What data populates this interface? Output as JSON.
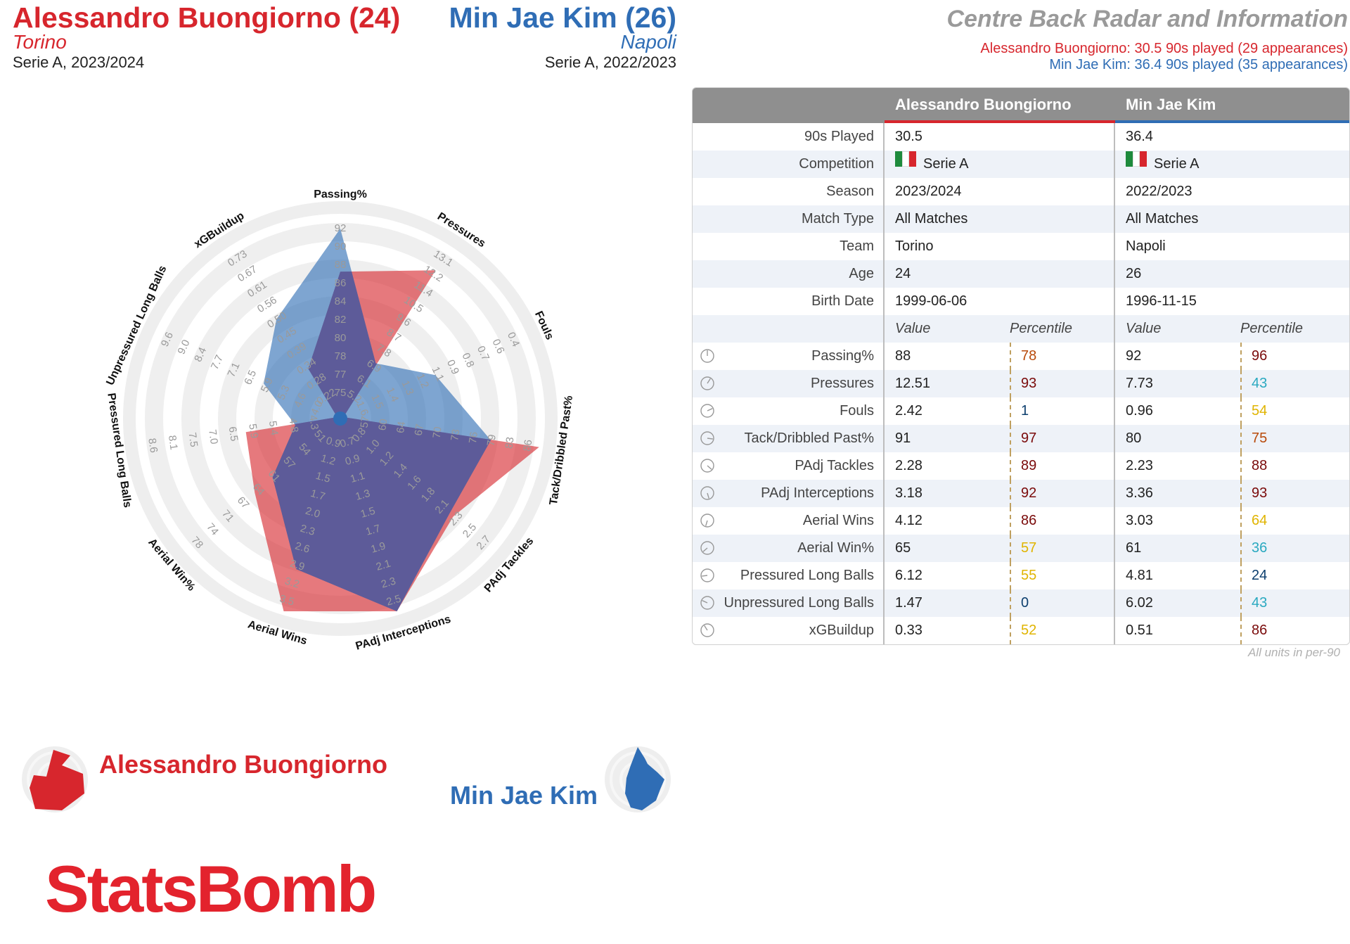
{
  "header": {
    "player1": {
      "name": "Alessandro Buongiorno (24)",
      "team": "Torino",
      "competition": "Serie A, 2023/2024"
    },
    "player2": {
      "name": "Min Jae Kim (26)",
      "team": "Napoli",
      "competition": "Serie A, 2022/2023"
    },
    "title": "Centre Back Radar and Information",
    "sub1": "Alessandro Buongiorno: 30.5 90s played (29 appearances)",
    "sub2": "Min Jae Kim: 36.4 90s played (35 appearances)"
  },
  "colors": {
    "player1": "#d7262d",
    "player2": "#2f6db5",
    "overlap": "#5c5a99"
  },
  "chart_data": {
    "type": "radar",
    "axes": [
      {
        "label": "Passing%",
        "ticks": [
          "75",
          "77",
          "78",
          "80",
          "82",
          "84",
          "86",
          "88",
          "90",
          "92"
        ],
        "min": 75,
        "max": 92,
        "reverse": false
      },
      {
        "label": "Pressures",
        "ticks": [
          "5.2",
          "6.1",
          "6.9",
          "7.8",
          "8.7",
          "9.6",
          "10.5",
          "11.4",
          "12.2",
          "13.1"
        ],
        "min": 5.2,
        "max": 13.1,
        "reverse": false
      },
      {
        "label": "Fouls",
        "ticks": [
          "1.6",
          "1.5",
          "1.4",
          "1.3",
          "1.2",
          "1.1",
          "0.9",
          "0.8",
          "0.7",
          "0.6",
          "0.4"
        ],
        "min": 1.6,
        "max": 0.4,
        "reverse": true
      },
      {
        "label": "Tack/Dribbled Past%",
        "ticks": [
          "57",
          "60",
          "64",
          "67",
          "70",
          "73",
          "76",
          "79",
          "83",
          "86"
        ],
        "min": 57,
        "max": 86,
        "reverse": false
      },
      {
        "label": "PAdj Tackles",
        "ticks": [
          "0.8",
          "1.0",
          "1.2",
          "1.4",
          "1.6",
          "1.8",
          "2.1",
          "2.3",
          "2.5",
          "2.7"
        ],
        "min": 0.8,
        "max": 2.7,
        "reverse": false
      },
      {
        "label": "PAdj Interceptions",
        "ticks": [
          "0.7",
          "0.9",
          "1.1",
          "1.3",
          "1.5",
          "1.7",
          "1.9",
          "2.1",
          "2.3",
          "2.5"
        ],
        "min": 0.7,
        "max": 2.5,
        "reverse": false
      },
      {
        "label": "Aerial Wins",
        "ticks": [
          "0.9",
          "1.2",
          "1.5",
          "1.7",
          "2.0",
          "2.3",
          "2.6",
          "2.9",
          "3.2",
          "3.5"
        ],
        "min": 0.9,
        "max": 3.5,
        "reverse": false
      },
      {
        "label": "Aerial Win%",
        "ticks": [
          "51",
          "54",
          "57",
          "61",
          "64",
          "67",
          "71",
          "74",
          "78"
        ],
        "min": 47,
        "max": 78,
        "reverse": false
      },
      {
        "label": "Pressured Long Balls",
        "ticks": [
          "4.3",
          "4.8",
          "5.4",
          "5.9",
          "6.5",
          "7.0",
          "7.5",
          "8.1",
          "8.6"
        ],
        "min": 3.8,
        "max": 8.6,
        "reverse": false
      },
      {
        "label": "Unpressured Long Balls",
        "ticks": [
          "4.0",
          "4.6",
          "5.3",
          "5.9",
          "6.5",
          "7.1",
          "7.7",
          "8.4",
          "9.0",
          "9.6"
        ],
        "min": 3.4,
        "max": 9.6,
        "reverse": false
      },
      {
        "label": "xGBuildup",
        "ticks": [
          "0.22",
          "0.28",
          "0.34",
          "0.39",
          "0.45",
          "0.50",
          "0.56",
          "0.61",
          "0.67",
          "0.73"
        ],
        "min": 0.17,
        "max": 0.73,
        "reverse": false
      }
    ],
    "series": [
      {
        "name": "Alessandro Buongiorno",
        "values": [
          88,
          12.51,
          2.42,
          91,
          2.28,
          3.18,
          4.12,
          65,
          6.12,
          1.47,
          0.33
        ]
      },
      {
        "name": "Min Jae Kim",
        "values": [
          92,
          7.73,
          0.96,
          80,
          2.23,
          3.36,
          3.03,
          61,
          4.81,
          6.02,
          0.51
        ]
      }
    ]
  },
  "table": {
    "headers": [
      "Alessandro Buongiorno",
      "Min Jae Kim"
    ],
    "info_rows": [
      {
        "label": "90s Played",
        "v1": "30.5",
        "v2": "36.4"
      },
      {
        "label": "Competition",
        "v1": "Serie A",
        "v2": "Serie A",
        "flag": true
      },
      {
        "label": "Season",
        "v1": "2023/2024",
        "v2": "2022/2023"
      },
      {
        "label": "Match Type",
        "v1": "All Matches",
        "v2": "All Matches"
      },
      {
        "label": "Team",
        "v1": "Torino",
        "v2": "Napoli"
      },
      {
        "label": "Age",
        "v1": "24",
        "v2": "26"
      },
      {
        "label": "Birth Date",
        "v1": "1999-06-06",
        "v2": "1996-11-15"
      }
    ],
    "sub_headers": {
      "value": "Value",
      "percentile": "Percentile"
    },
    "metric_rows": [
      {
        "label": "Passing%",
        "v1": "88",
        "p1": "78",
        "v2": "92",
        "p2": "96"
      },
      {
        "label": "Pressures",
        "v1": "12.51",
        "p1": "93",
        "v2": "7.73",
        "p2": "43"
      },
      {
        "label": "Fouls",
        "v1": "2.42",
        "p1": "1",
        "v2": "0.96",
        "p2": "54"
      },
      {
        "label": "Tack/Dribbled Past%",
        "v1": "91",
        "p1": "97",
        "v2": "80",
        "p2": "75"
      },
      {
        "label": "PAdj Tackles",
        "v1": "2.28",
        "p1": "89",
        "v2": "2.23",
        "p2": "88"
      },
      {
        "label": "PAdj Interceptions",
        "v1": "3.18",
        "p1": "92",
        "v2": "3.36",
        "p2": "93"
      },
      {
        "label": "Aerial Wins",
        "v1": "4.12",
        "p1": "86",
        "v2": "3.03",
        "p2": "64"
      },
      {
        "label": "Aerial Win%",
        "v1": "65",
        "p1": "57",
        "v2": "61",
        "p2": "36"
      },
      {
        "label": "Pressured Long Balls",
        "v1": "6.12",
        "p1": "55",
        "v2": "4.81",
        "p2": "24"
      },
      {
        "label": "Unpressured Long Balls",
        "v1": "1.47",
        "p1": "0",
        "v2": "6.02",
        "p2": "43"
      },
      {
        "label": "xGBuildup",
        "v1": "0.33",
        "p1": "52",
        "v2": "0.51",
        "p2": "86"
      }
    ],
    "note": "All units in per-90"
  },
  "legend": {
    "player1": "Alessandro Buongiorno",
    "player2": "Min Jae Kim"
  },
  "brand": "StatsBomb"
}
